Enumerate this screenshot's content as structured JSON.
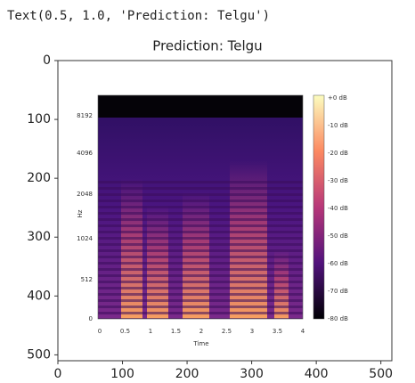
{
  "output_text": "Text(0.5, 1.0, 'Prediction: Telgu')",
  "chart_data": {
    "type": "image",
    "title": "Prediction: Telgu",
    "xlim": [
      0,
      517
    ],
    "ylim": [
      510,
      0
    ],
    "xticks": [
      0,
      100,
      200,
      300,
      400,
      500
    ],
    "yticks": [
      0,
      100,
      200,
      300,
      400,
      500
    ],
    "image": {
      "y_labels": [
        "8192",
        "4096",
        "2048",
        "1024",
        "512",
        "0"
      ],
      "x_labels": [
        "0",
        "0.5",
        "1",
        "1.5",
        "2",
        "2.5",
        "3",
        "3.5",
        "4"
      ],
      "ylabel": "Hz",
      "xlabel": "Time",
      "colorbar_labels": [
        "+0 dB",
        "-10 dB",
        "-20 dB",
        "-30 dB",
        "-40 dB",
        "-50 dB",
        "-60 dB",
        "-70 dB",
        "-80 dB"
      ]
    }
  }
}
